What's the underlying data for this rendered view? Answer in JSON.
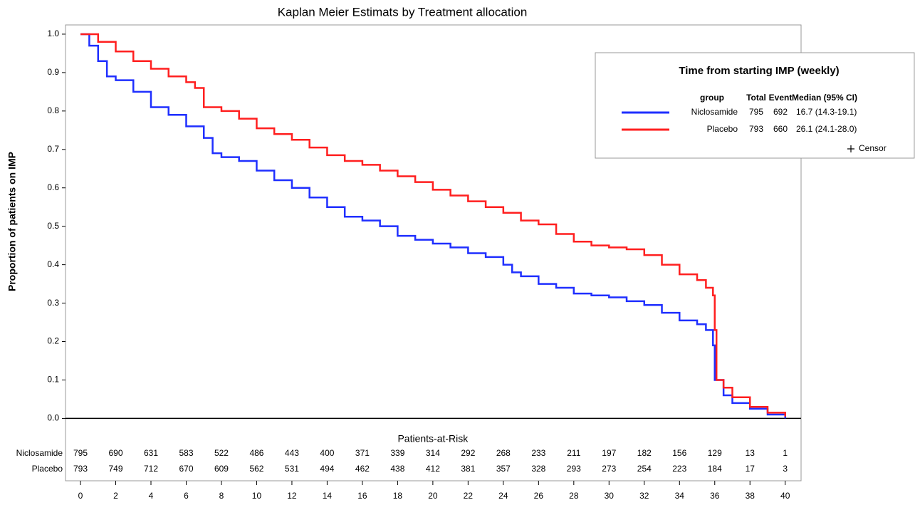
{
  "chart_data": {
    "type": "step",
    "title": "Kaplan Meier Estimats by Treatment allocation",
    "y_label": "Proportion of patients on IMP",
    "xlim": [
      -0.85,
      40.9
    ],
    "ylim": [
      -0.04,
      1.024
    ],
    "xticks": [
      0,
      2,
      4,
      6,
      8,
      10,
      12,
      14,
      16,
      18,
      20,
      22,
      24,
      26,
      28,
      30,
      32,
      34,
      36,
      38,
      40
    ],
    "yticks": [
      {
        "value": 0,
        "label": "0.0"
      },
      {
        "value": 0.1,
        "label": "0.1"
      },
      {
        "value": 0.2,
        "label": "0.2"
      },
      {
        "value": 0.3,
        "label": "0.3"
      },
      {
        "value": 0.4,
        "label": "0.4"
      },
      {
        "value": 0.5,
        "label": "0.5"
      },
      {
        "value": 0.6,
        "label": "0.6"
      },
      {
        "value": 0.7,
        "label": "0.7"
      },
      {
        "value": 0.8,
        "label": "0.8"
      },
      {
        "value": 0.9,
        "label": "0.9"
      },
      {
        "value": 1,
        "label": "1.0"
      }
    ],
    "legend": {
      "title": "Time from starting IMP (weekly)",
      "columns": [
        "group",
        "Total",
        "Event",
        "Median (95% CI)"
      ],
      "censor_label": "Censor",
      "position": "upper right"
    },
    "at_risk_title": "Patients-at-Risk",
    "series": [
      {
        "name": "Niclosamide",
        "color": "#1f2fff",
        "total": 795,
        "event": 692,
        "median": "16.7 (14.3-19.1)",
        "x": [
          0,
          0.5,
          1,
          1.5,
          2,
          3,
          4,
          5,
          6,
          7,
          7.5,
          8,
          9,
          10,
          11,
          12,
          13,
          14,
          15,
          16,
          17,
          18,
          19,
          20,
          21,
          22,
          23,
          24,
          24.5,
          25,
          26,
          27,
          28,
          29,
          30,
          31,
          32,
          33,
          34,
          35,
          35.5,
          35.9,
          36,
          36.5,
          37,
          38,
          39,
          40
        ],
        "values": [
          1.0,
          0.97,
          0.93,
          0.89,
          0.88,
          0.85,
          0.81,
          0.79,
          0.76,
          0.73,
          0.69,
          0.68,
          0.67,
          0.645,
          0.62,
          0.6,
          0.575,
          0.55,
          0.525,
          0.515,
          0.5,
          0.475,
          0.465,
          0.455,
          0.445,
          0.43,
          0.42,
          0.4,
          0.38,
          0.37,
          0.35,
          0.34,
          0.325,
          0.32,
          0.315,
          0.305,
          0.295,
          0.275,
          0.255,
          0.245,
          0.23,
          0.19,
          0.1,
          0.06,
          0.04,
          0.025,
          0.01,
          0.0
        ],
        "at_risk": [
          795,
          690,
          631,
          583,
          522,
          486,
          443,
          400,
          371,
          339,
          314,
          292,
          268,
          233,
          211,
          197,
          182,
          156,
          129,
          13,
          1
        ]
      },
      {
        "name": "Placebo",
        "color": "#ff1f1f",
        "total": 793,
        "event": 660,
        "median": "26.1 (24.1-28.0)",
        "x": [
          0,
          1,
          2,
          3,
          4,
          5,
          6,
          6.5,
          7,
          8,
          9,
          10,
          11,
          12,
          13,
          14,
          15,
          16,
          17,
          18,
          19,
          20,
          21,
          22,
          23,
          24,
          25,
          26,
          27,
          28,
          29,
          30,
          31,
          32,
          33,
          34,
          35,
          35.5,
          35.9,
          36,
          36.1,
          36.5,
          37,
          38,
          39,
          40
        ],
        "values": [
          1.0,
          0.98,
          0.955,
          0.93,
          0.91,
          0.89,
          0.875,
          0.86,
          0.81,
          0.8,
          0.78,
          0.755,
          0.74,
          0.725,
          0.705,
          0.685,
          0.67,
          0.66,
          0.645,
          0.63,
          0.615,
          0.595,
          0.58,
          0.565,
          0.55,
          0.535,
          0.515,
          0.505,
          0.48,
          0.46,
          0.45,
          0.445,
          0.44,
          0.425,
          0.4,
          0.375,
          0.36,
          0.34,
          0.32,
          0.23,
          0.1,
          0.08,
          0.055,
          0.03,
          0.015,
          0.005
        ],
        "at_risk": [
          793,
          749,
          712,
          670,
          609,
          562,
          531,
          494,
          462,
          438,
          412,
          381,
          357,
          328,
          293,
          273,
          254,
          223,
          184,
          17,
          3
        ]
      }
    ]
  }
}
